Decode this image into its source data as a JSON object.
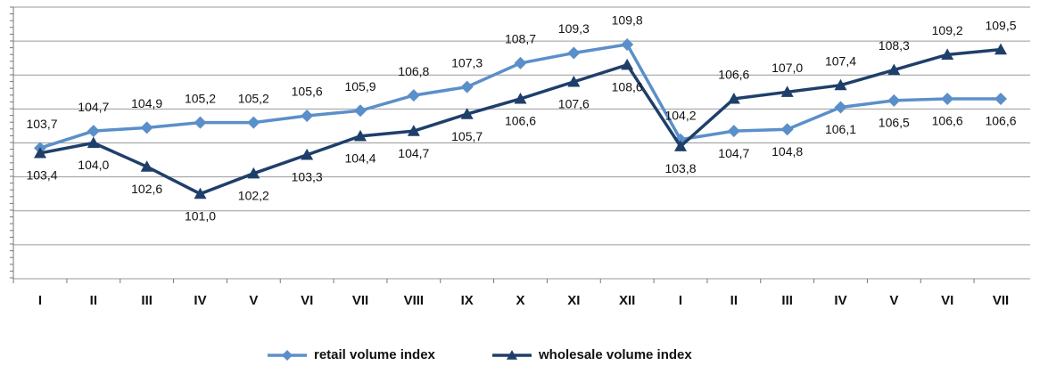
{
  "chart_data": {
    "type": "line",
    "categories": [
      "I",
      "II",
      "III",
      "IV",
      "V",
      "VI",
      "VII",
      "VIII",
      "IX",
      "X",
      "XI",
      "XII",
      "I",
      "II",
      "III",
      "IV",
      "V",
      "VI",
      "VII"
    ],
    "series": [
      {
        "name": "retail volume index",
        "color": "#5b8fc9",
        "marker": "diamond",
        "values": [
          103.7,
          104.7,
          104.9,
          105.2,
          105.2,
          105.6,
          105.9,
          106.8,
          107.3,
          108.7,
          109.3,
          109.8,
          104.2,
          104.7,
          104.8,
          106.1,
          106.5,
          106.6,
          106.6
        ],
        "value_labels": [
          "103,7",
          "104,7",
          "104,9",
          "105,2",
          "105,2",
          "105,6",
          "105,9",
          "106,8",
          "107,3",
          "108,7",
          "109,3",
          "109,8",
          "104,2",
          "104,7",
          "104,8",
          "106,1",
          "106,5",
          "106,6",
          "106,6"
        ]
      },
      {
        "name": "wholesale volume index",
        "color": "#1f3f6b",
        "marker": "triangle",
        "values": [
          103.4,
          104.0,
          102.6,
          101.0,
          102.2,
          103.3,
          104.4,
          104.7,
          105.7,
          106.6,
          107.6,
          108.6,
          103.8,
          106.6,
          107.0,
          107.4,
          108.3,
          109.2,
          109.5
        ],
        "value_labels": [
          "103,4",
          "104,0",
          "102,6",
          "101,0",
          "102,2",
          "103,3",
          "104,4",
          "104,7",
          "105,7",
          "106,6",
          "107,6",
          "108,6",
          "103,8",
          "106,6",
          "107,0",
          "107,4",
          "108,3",
          "109,2",
          "109,5"
        ]
      }
    ],
    "ylim": [
      96,
      112
    ],
    "yticks": [
      96,
      98,
      100,
      102,
      104,
      106,
      108,
      110,
      112
    ],
    "grid": true,
    "legend": "bottom"
  }
}
